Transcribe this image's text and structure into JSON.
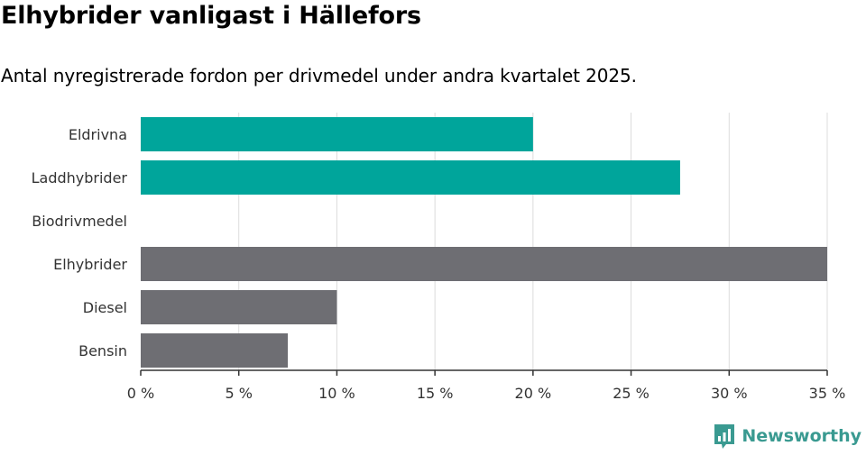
{
  "title": "Elhybrider vanligast i Hällefors",
  "subtitle": "Antal nyregistrerade fordon per drivmedel under andra kvartalet 2025.",
  "brand": {
    "name": "Newsworthy",
    "icon": "newsworthy-logo-icon",
    "color": "#3a9a91"
  },
  "chart_data": {
    "type": "bar",
    "orientation": "horizontal",
    "categories": [
      "Eldrivna",
      "Laddhybrider",
      "Biodrivmedel",
      "Elhybrider",
      "Diesel",
      "Bensin"
    ],
    "values": [
      20,
      27.5,
      0,
      35,
      10,
      7.5
    ],
    "colors": [
      "#00a59b",
      "#00a59b",
      "#00a59b",
      "#6e6e73",
      "#6e6e73",
      "#6e6e73"
    ],
    "xlim": [
      0,
      35
    ],
    "xticks": [
      0,
      5,
      10,
      15,
      20,
      25,
      30,
      35
    ],
    "xtick_labels": [
      "0 %",
      "5 %",
      "10 %",
      "15 %",
      "20 %",
      "25 %",
      "30 %",
      "35 %"
    ],
    "xlabel": "",
    "ylabel": "",
    "grid": true
  }
}
